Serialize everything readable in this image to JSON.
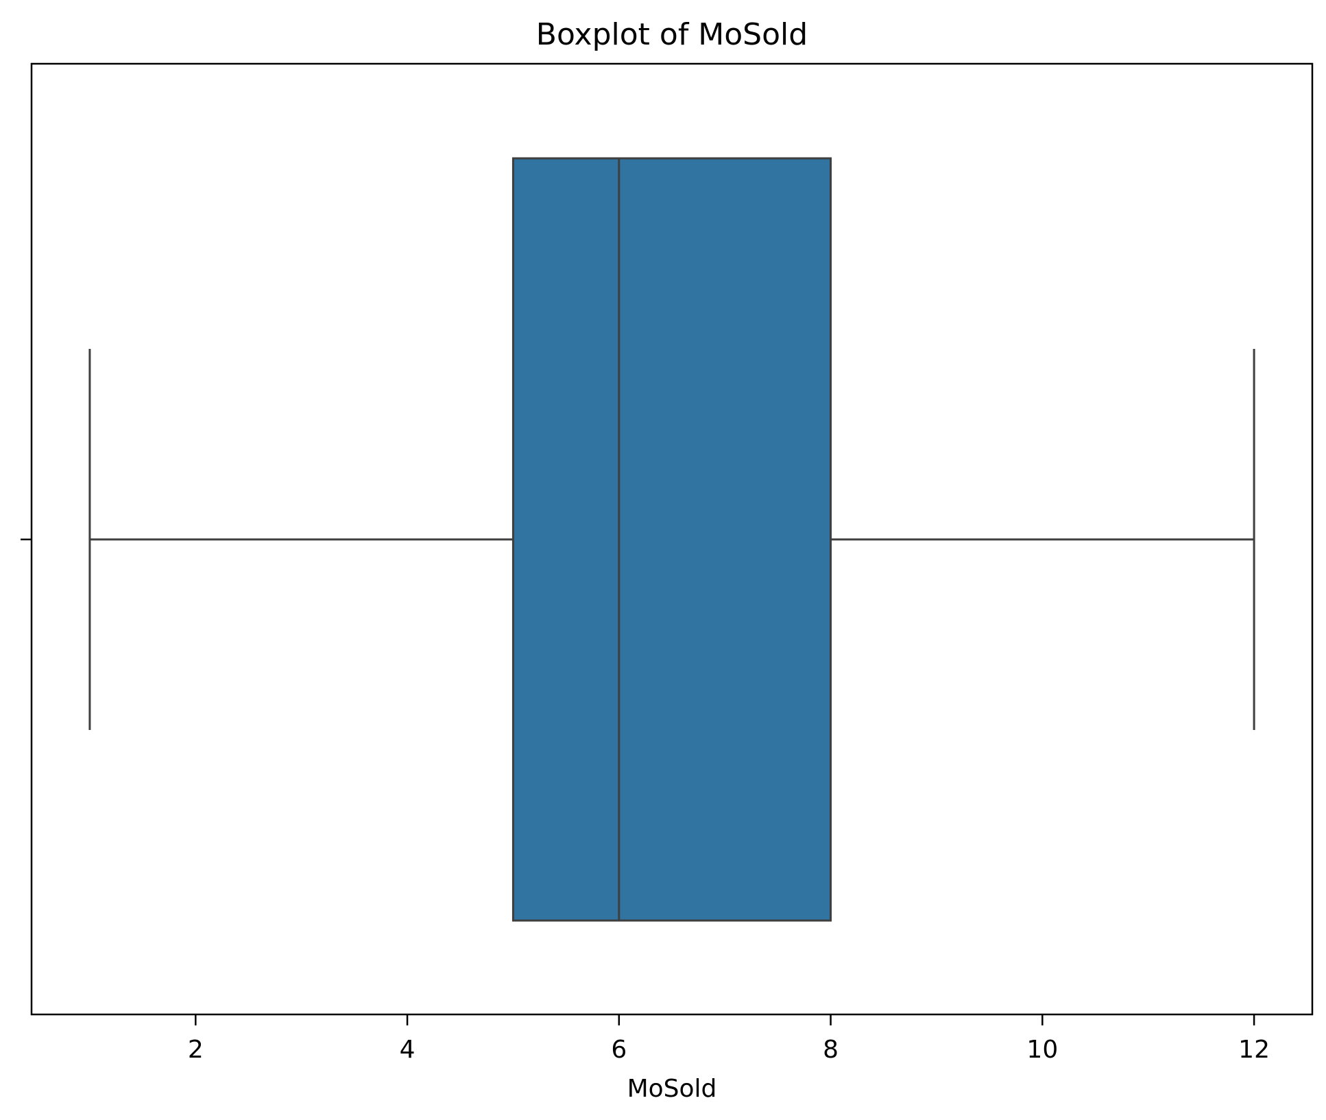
{
  "chart_data": {
    "type": "boxplot",
    "title": "Boxplot of MoSold",
    "xlabel": "MoSold",
    "ylabel": "",
    "orientation": "horizontal",
    "xlim": [
      0.45,
      12.55
    ],
    "xticks": [
      2,
      4,
      6,
      8,
      10,
      12
    ],
    "xtick_labels": [
      "2",
      "4",
      "6",
      "8",
      "10",
      "12"
    ],
    "grid": false,
    "series": [
      {
        "whisker_low": 1,
        "q1": 5,
        "median": 6,
        "q3": 8,
        "whisker_high": 12,
        "outliers": []
      }
    ],
    "colors": {
      "box_fill": "#3274a1",
      "box_edge": "#3f3f3f",
      "axes": "#000000",
      "background": "#ffffff"
    }
  }
}
